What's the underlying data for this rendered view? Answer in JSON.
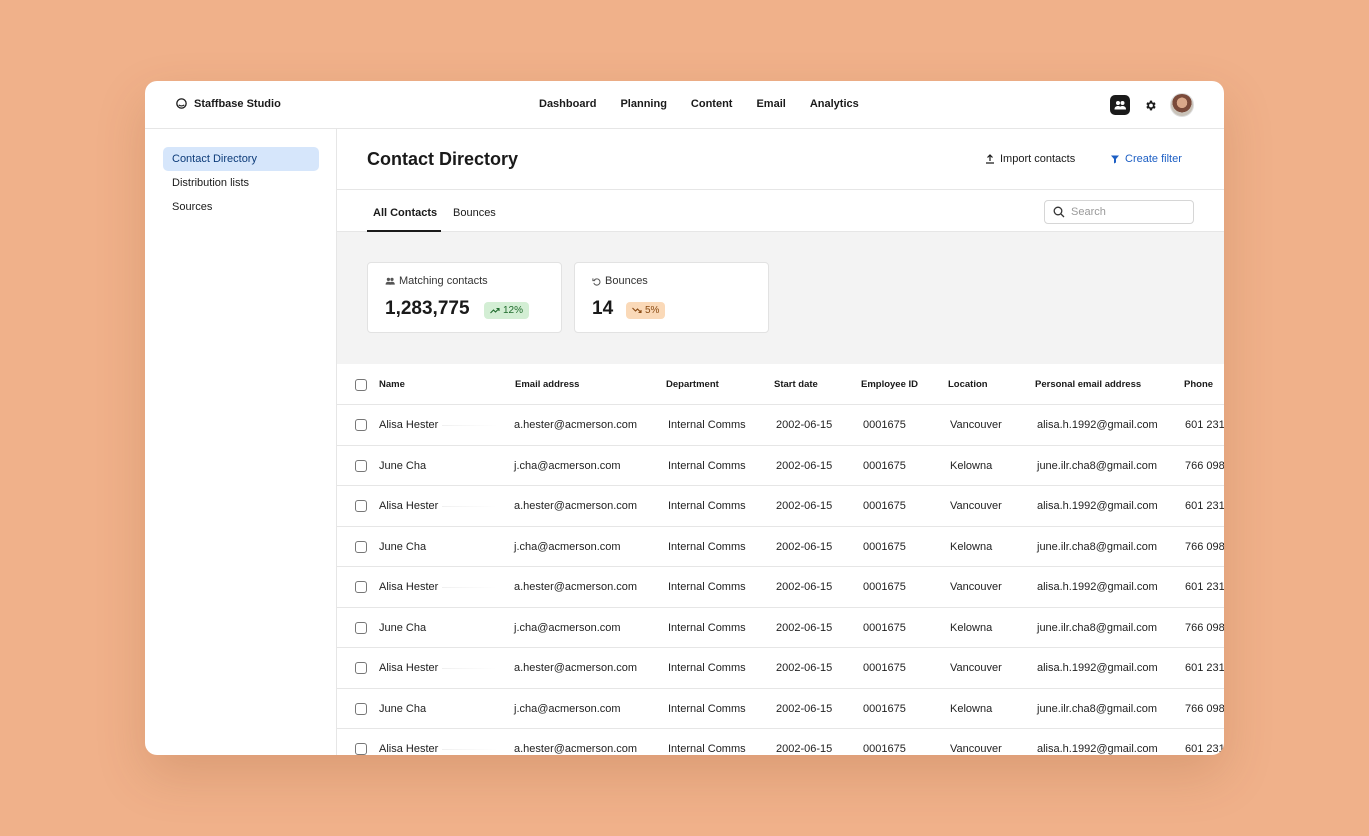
{
  "brand": {
    "name": "Staffbase Studio"
  },
  "nav": [
    "Dashboard",
    "Planning",
    "Content",
    "Email",
    "Analytics"
  ],
  "sidebar": {
    "items": [
      {
        "label": "Contact Directory",
        "active": true
      },
      {
        "label": "Distribution lists",
        "active": false
      },
      {
        "label": "Sources",
        "active": false
      }
    ]
  },
  "header": {
    "title": "Contact Directory",
    "import_label": "Import contacts",
    "filter_label": "Create filter"
  },
  "tabs": [
    {
      "label": "All Contacts",
      "active": true
    },
    {
      "label": "Bounces",
      "active": false
    }
  ],
  "search": {
    "placeholder": "Search",
    "value": ""
  },
  "stats": {
    "matching": {
      "label": "Matching contacts",
      "value": "1,283,775",
      "change": "12%",
      "trend": "up"
    },
    "bounces": {
      "label": "Bounces",
      "value": "14",
      "change": "5%",
      "trend": "down"
    }
  },
  "table": {
    "columns": [
      "Name",
      "Email address",
      "Department",
      "Start date",
      "Employee ID",
      "Location",
      "Personal email address",
      "Phone"
    ],
    "rows": [
      [
        "Alisa Hester",
        "a.hester@acmerson.com",
        "Internal Comms",
        "2002-06-15",
        "0001675",
        "Vancouver",
        "alisa.h.1992@gmail.com",
        "601 231"
      ],
      [
        "June Cha",
        "j.cha@acmerson.com",
        "Internal Comms",
        "2002-06-15",
        "0001675",
        "Kelowna",
        "june.ilr.cha8@gmail.com",
        "766 098"
      ],
      [
        "Alisa Hester",
        "a.hester@acmerson.com",
        "Internal Comms",
        "2002-06-15",
        "0001675",
        "Vancouver",
        "alisa.h.1992@gmail.com",
        "601 231"
      ],
      [
        "June Cha",
        "j.cha@acmerson.com",
        "Internal Comms",
        "2002-06-15",
        "0001675",
        "Kelowna",
        "june.ilr.cha8@gmail.com",
        "766 098"
      ],
      [
        "Alisa Hester",
        "a.hester@acmerson.com",
        "Internal Comms",
        "2002-06-15",
        "0001675",
        "Vancouver",
        "alisa.h.1992@gmail.com",
        "601 231"
      ],
      [
        "June Cha",
        "j.cha@acmerson.com",
        "Internal Comms",
        "2002-06-15",
        "0001675",
        "Kelowna",
        "june.ilr.cha8@gmail.com",
        "766 098"
      ],
      [
        "Alisa Hester",
        "a.hester@acmerson.com",
        "Internal Comms",
        "2002-06-15",
        "0001675",
        "Vancouver",
        "alisa.h.1992@gmail.com",
        "601 231"
      ],
      [
        "June Cha",
        "j.cha@acmerson.com",
        "Internal Comms",
        "2002-06-15",
        "0001675",
        "Kelowna",
        "june.ilr.cha8@gmail.com",
        "766 098"
      ],
      [
        "Alisa Hester",
        "a.hester@acmerson.com",
        "Internal Comms",
        "2002-06-15",
        "0001675",
        "Vancouver",
        "alisa.h.1992@gmail.com",
        "601 231"
      ]
    ]
  },
  "colors": {
    "background": "#f0b18a",
    "accent": "#1d5fc4",
    "active_nav_bg": "#d6e6fb",
    "up_badge": "#d3eed4",
    "down_badge": "#fad9b8"
  },
  "icons": {
    "brand": "staffbase-logo-icon",
    "contacts": "users-icon",
    "settings": "gear-icon",
    "import": "upload-icon",
    "filter": "filter-icon",
    "search": "search-icon",
    "matching": "users-icon",
    "bounces": "bounce-icon",
    "trend_up": "trend-up-icon",
    "trend_down": "trend-down-icon"
  }
}
